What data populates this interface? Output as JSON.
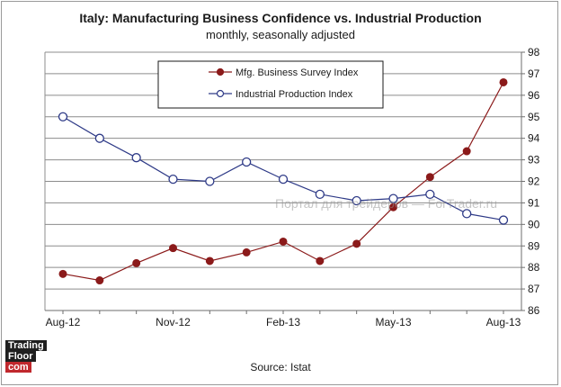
{
  "header": {
    "title": "Italy: Manufacturing Business Confidence vs. Industrial Production",
    "subtitle": "monthly, seasonally adjusted"
  },
  "source": "Source: Istat",
  "logo": {
    "line1": "Trading",
    "line2": "Floor",
    "line3": "com"
  },
  "watermark": "Портал для трейдеров — ForTrader.ru",
  "chart_data": {
    "type": "line",
    "title": "Italy: Manufacturing Business Confidence vs. Industrial Production",
    "subtitle": "monthly, seasonally adjusted",
    "x": [
      "Aug-12",
      "Sep-12",
      "Oct-12",
      "Nov-12",
      "Dec-12",
      "Jan-13",
      "Feb-13",
      "Mar-13",
      "Apr-13",
      "May-13",
      "Jun-13",
      "Jul-13",
      "Aug-13"
    ],
    "x_tick_labels": [
      "Aug-12",
      "Nov-12",
      "Feb-13",
      "May-13",
      "Aug-13"
    ],
    "y_ticks": [
      86,
      87,
      88,
      89,
      90,
      91,
      92,
      93,
      94,
      95,
      96,
      97,
      98
    ],
    "ylim": [
      86,
      98
    ],
    "grid": true,
    "legend_position": "top-center",
    "series": [
      {
        "name": "Mfg. Business Survey Index",
        "color": "#8b1a1a",
        "marker": "filled-circle",
        "values": [
          87.7,
          87.4,
          88.2,
          88.9,
          88.3,
          88.7,
          89.2,
          88.3,
          89.1,
          90.8,
          92.2,
          93.4,
          96.6
        ]
      },
      {
        "name": "Industrial Production Index",
        "color": "#2e3a87",
        "marker": "open-circle",
        "values": [
          95.0,
          94.0,
          93.1,
          92.1,
          92.0,
          92.9,
          92.1,
          91.4,
          91.1,
          91.2,
          91.4,
          90.5,
          90.2
        ]
      }
    ]
  }
}
